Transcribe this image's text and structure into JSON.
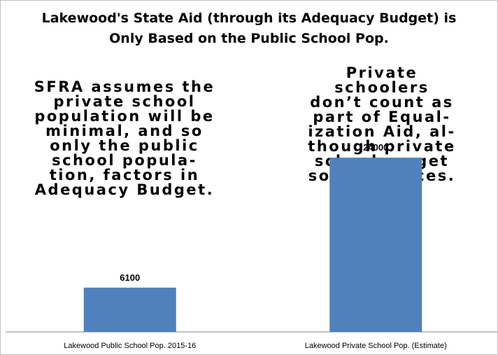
{
  "chart_data": {
    "type": "bar",
    "title": "Lakewood's State Aid (through its Adequacy Budget) is Only Based on the Public School Pop.",
    "title_lines": [
      "Lakewood's State Aid (through its Adequacy Budget) is",
      "Only Based on the Public School Pop."
    ],
    "categories": [
      "Lakewood Public School Pop. 2015-16",
      "Lakewood Private School Pop. (Estimate)"
    ],
    "values": [
      6100,
      24000
    ],
    "data_labels": [
      "6100",
      "24000"
    ],
    "ylim": [
      0,
      30000
    ],
    "xlabel": "",
    "ylabel": "",
    "grid": false,
    "bar_color": "#4F81BD",
    "annotations": [
      "SFRA assumes the\nprivate school\npopulation will be\nminimal, and so\nonly the public\nschool popula-\ntion, factors in\nAdequacy Budget.",
      "Private\nschoolers\ndon’t count as\npart of Equal-\nization Aid, al-\nthough private\nschoolers get\nsome services."
    ]
  }
}
